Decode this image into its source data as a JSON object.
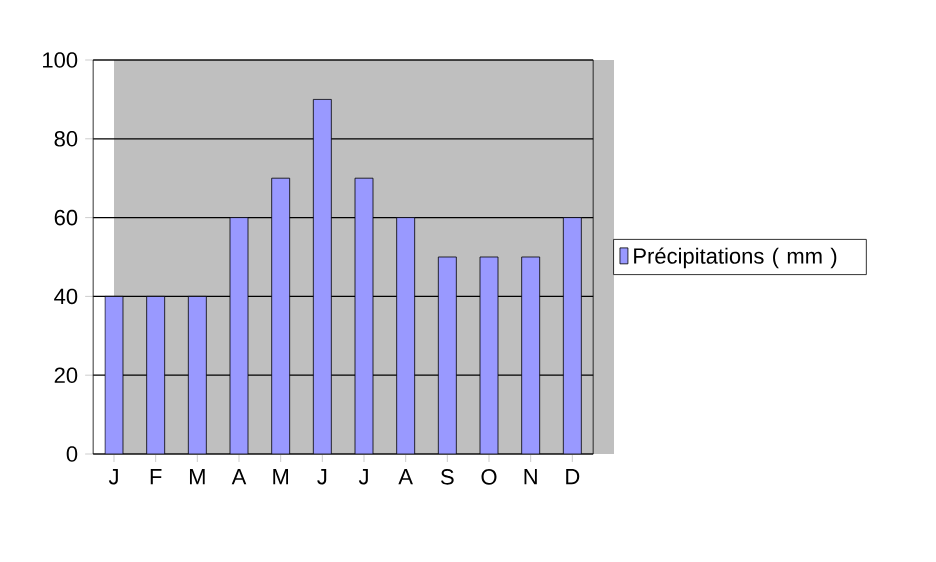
{
  "chart_data": {
    "type": "bar",
    "categories": [
      "J",
      "F",
      "M",
      "A",
      "M",
      "J",
      "J",
      "A",
      "S",
      "O",
      "N",
      "D"
    ],
    "series": [
      {
        "name": "Précipitations ( mm )",
        "color": "#9999ff",
        "values": [
          40,
          40,
          40,
          60,
          70,
          90,
          70,
          60,
          50,
          50,
          50,
          60
        ]
      }
    ],
    "ylim": [
      0,
      100
    ],
    "yticks": [
      0,
      20,
      40,
      60,
      80,
      100
    ],
    "grid": "y",
    "legend": "right"
  }
}
